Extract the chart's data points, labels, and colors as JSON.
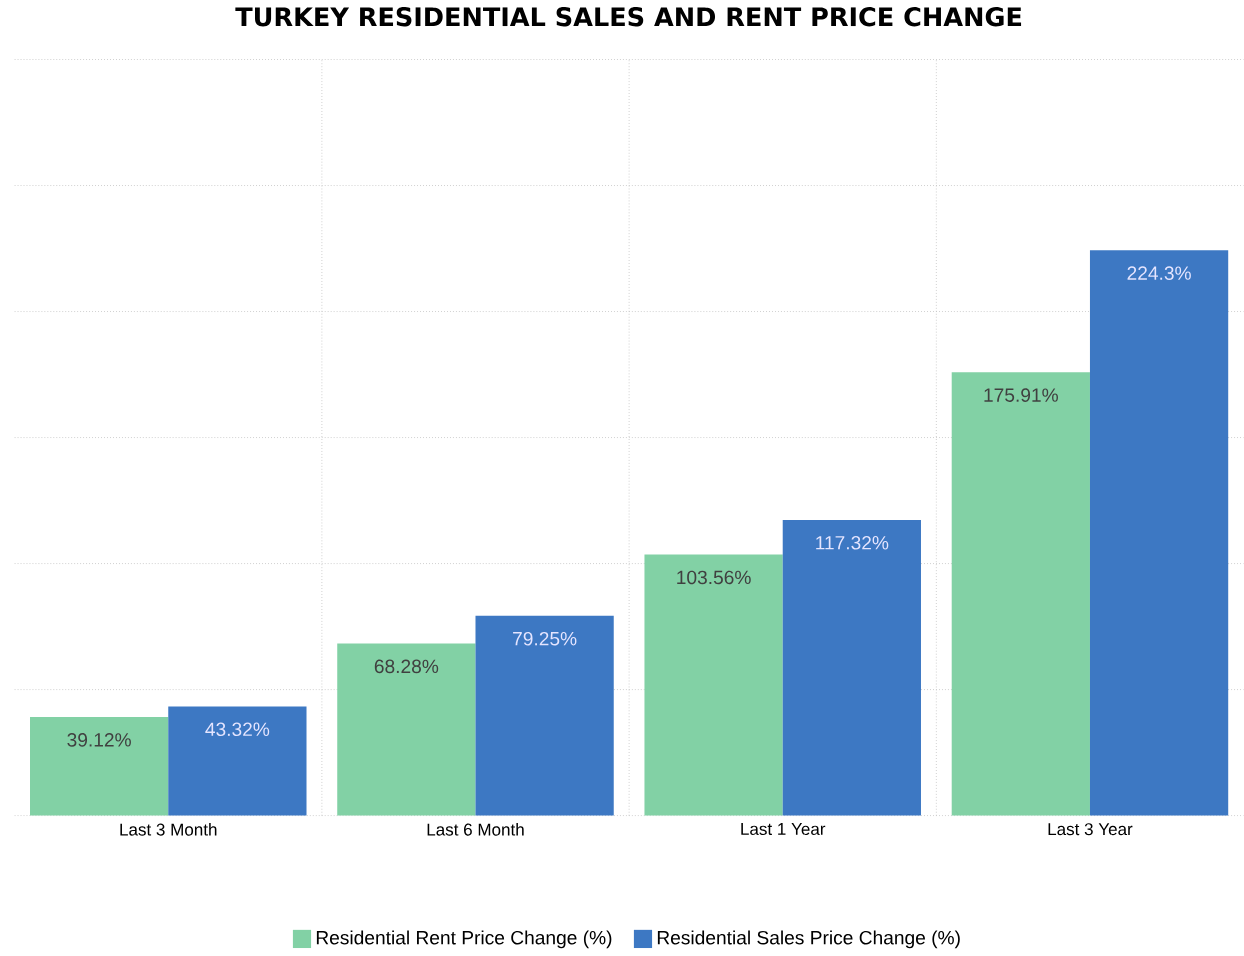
{
  "chart_data": {
    "type": "bar",
    "title": "TURKEY RESIDENTIAL SALES AND RENT PRICE CHANGE",
    "categories": [
      "Last 3 Month",
      "Last 6 Month",
      "Last 1 Year",
      "Last 3 Year"
    ],
    "series": [
      {
        "name": "Residential Rent Price Change (%)",
        "color": "#82d1a5",
        "values": [
          39.12,
          68.28,
          103.56,
          175.91
        ],
        "value_labels": [
          "39.12%",
          "68.28%",
          "103.56%",
          "175.91%"
        ]
      },
      {
        "name": "Residential Sales Price Change (%)",
        "color": "#3d78c3",
        "values": [
          43.32,
          79.25,
          117.32,
          224.3
        ],
        "value_labels": [
          "43.32%",
          "79.25%",
          "117.32%",
          "224.3%"
        ]
      }
    ],
    "ylim": [
      0,
      300
    ],
    "yticks": [
      {
        "value": 0,
        "label": null
      },
      {
        "value": 50,
        "label": null
      },
      {
        "value": 100,
        "label": null
      },
      {
        "value": 150,
        "label": null
      },
      {
        "value": 200,
        "label": null
      },
      {
        "value": 250,
        "label": null
      },
      {
        "value": 300,
        "label": null
      }
    ],
    "tick_labels": "x",
    "grid": true,
    "legend": "bottom"
  }
}
